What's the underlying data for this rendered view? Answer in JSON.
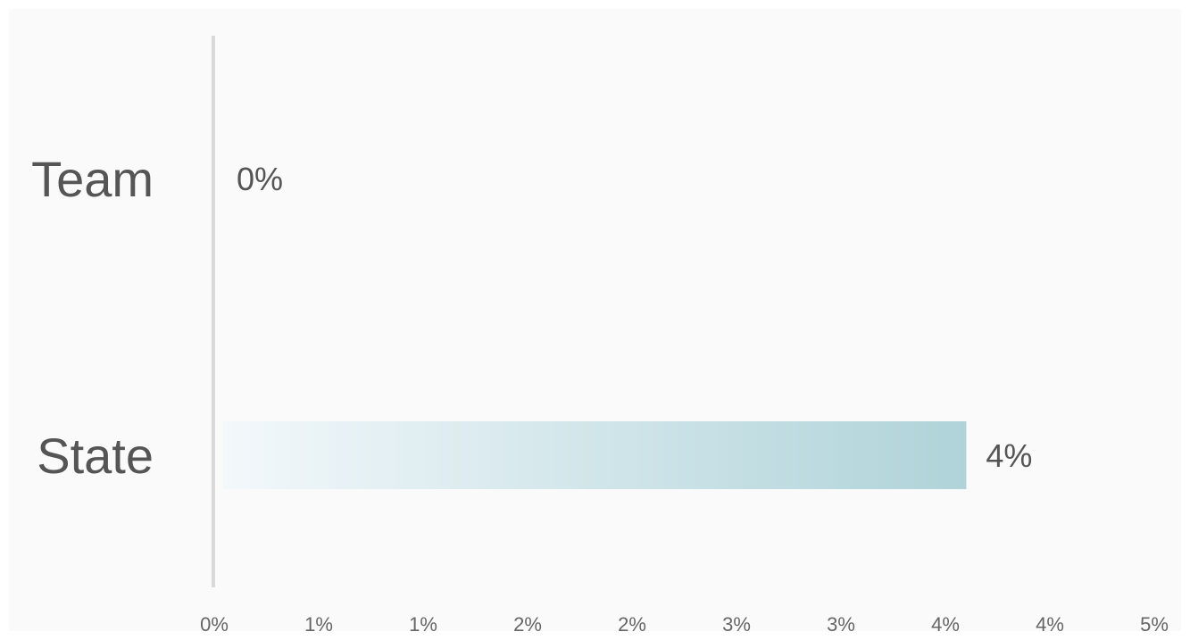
{
  "chart_data": {
    "type": "bar",
    "orientation": "horizontal",
    "categories": [
      "Team",
      "State"
    ],
    "values": [
      0,
      4
    ],
    "data_labels": [
      "0%",
      "4%"
    ],
    "xlim": [
      0,
      5
    ],
    "x_tick_labels": [
      "0%",
      "1%",
      "1%",
      "2%",
      "2%",
      "3%",
      "3%",
      "4%",
      "4%",
      "5%"
    ],
    "grid": false,
    "legend": "none",
    "colors": {
      "background": "#fafafa",
      "axis": "#d9d9d9",
      "bar_start": "#f3f8fb",
      "bar_end": "#afd3d9",
      "label_text": "#555555",
      "tick_text": "#666666"
    }
  }
}
